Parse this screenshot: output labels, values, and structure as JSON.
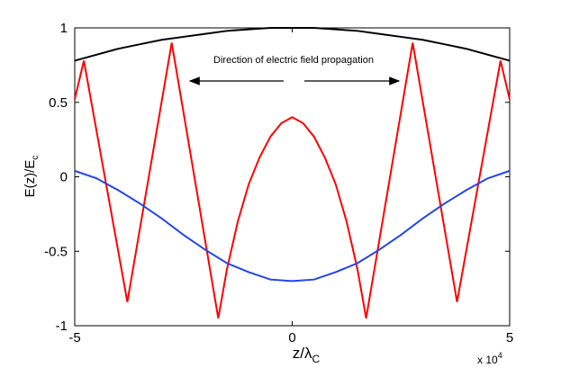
{
  "chart_data": {
    "type": "line",
    "xlabel": "z/λ",
    "xlabel_sub": "C",
    "ylabel": "E(z)/E",
    "ylabel_sub": "c",
    "x_multiplier": "x 10",
    "x_multiplier_exp": "4",
    "annotation": "Direction of electric field propagation",
    "xlim": [
      -5,
      5
    ],
    "xticks": [
      -5,
      0,
      5
    ],
    "ylim": [
      -1,
      1
    ],
    "yticks": [
      -1,
      -0.5,
      0,
      0.5,
      1
    ],
    "series": [
      {
        "color": "#000000",
        "x": [
          -5,
          -4.5,
          -4,
          -3.5,
          -3,
          -2.5,
          -2,
          -1.5,
          -1,
          -0.5,
          0,
          0.5,
          1,
          1.5,
          2,
          2.5,
          3,
          3.5,
          4,
          4.5,
          5
        ],
        "values": [
          0.78,
          0.82,
          0.86,
          0.89,
          0.92,
          0.94,
          0.96,
          0.98,
          0.99,
          1.0,
          1.0,
          1.0,
          0.99,
          0.98,
          0.96,
          0.94,
          0.92,
          0.89,
          0.86,
          0.82,
          0.78
        ]
      },
      {
        "color": "#ff0000",
        "x": [
          -5,
          -4.79,
          -3.79,
          -2.77,
          -1.7,
          -1.5,
          -1.25,
          -1,
          -0.75,
          -0.5,
          -0.25,
          0,
          0.25,
          0.5,
          0.75,
          1,
          1.25,
          1.5,
          1.7,
          2.77,
          3.79,
          4.79,
          5
        ],
        "values": [
          0.52,
          0.78,
          -0.84,
          0.9,
          -0.95,
          -0.62,
          -0.3,
          -0.05,
          0.13,
          0.27,
          0.36,
          0.4,
          0.36,
          0.27,
          0.13,
          -0.05,
          -0.3,
          -0.62,
          -0.95,
          0.9,
          -0.84,
          0.78,
          0.52
        ]
      },
      {
        "color": "#2244ee",
        "x": [
          -5,
          -4.5,
          -4,
          -3.5,
          -3,
          -2.5,
          -2,
          -1.5,
          -1,
          -0.5,
          0,
          0.5,
          1,
          1.5,
          2,
          2.5,
          3,
          3.5,
          4,
          4.5,
          5
        ],
        "values": [
          0.04,
          -0.01,
          -0.09,
          -0.18,
          -0.28,
          -0.39,
          -0.49,
          -0.58,
          -0.64,
          -0.69,
          -0.7,
          -0.69,
          -0.64,
          -0.58,
          -0.49,
          -0.39,
          -0.28,
          -0.18,
          -0.09,
          -0.01,
          0.04
        ]
      }
    ]
  }
}
